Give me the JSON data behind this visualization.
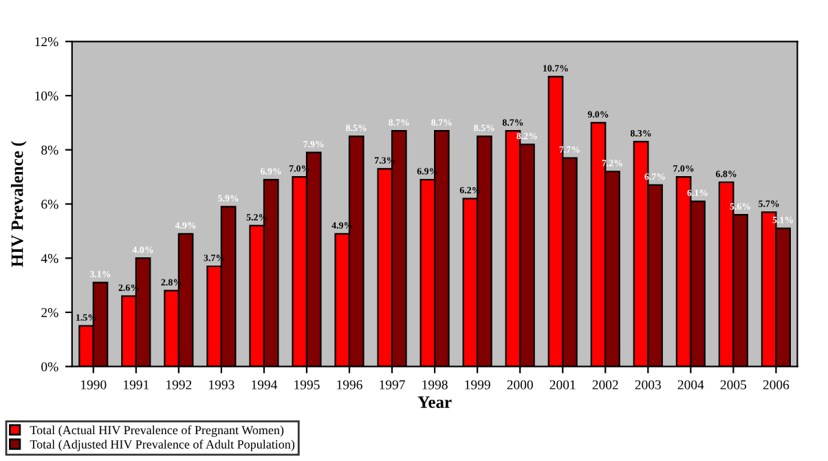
{
  "chart_data": {
    "type": "bar",
    "xlabel": "Year",
    "ylabel": "HIV Prevalence (",
    "categories": [
      "1990",
      "1991",
      "1992",
      "1993",
      "1994",
      "1995",
      "1996",
      "1997",
      "1998",
      "1999",
      "2000",
      "2001",
      "2002",
      "2003",
      "2004",
      "2005",
      "2006"
    ],
    "series": [
      {
        "name": "Total (Actual HIV Prevalence of Pregnant Women)",
        "color": "#ff0000",
        "values": [
          1.5,
          2.6,
          2.8,
          3.7,
          5.2,
          7.0,
          4.9,
          7.3,
          6.9,
          6.2,
          8.7,
          10.7,
          9.0,
          8.3,
          7.0,
          6.8,
          5.7
        ],
        "value_labels": [
          "1.5%",
          "2.6%",
          "2.8%",
          "3.7%",
          "5.2%",
          "7.0%",
          "4.9%",
          "7.3%",
          "6.9%",
          "6.2%",
          "8.7%",
          "10.7%",
          "9.0%",
          "8.3%",
          "7.0%",
          "6.8%",
          "5.7%"
        ]
      },
      {
        "name": "Total (Adjusted HIV Prevalence of Adult Population)",
        "color": "#800000",
        "values": [
          3.1,
          4.0,
          4.9,
          5.9,
          6.9,
          7.9,
          8.5,
          8.7,
          8.7,
          8.5,
          8.2,
          7.7,
          7.2,
          6.7,
          6.1,
          5.6,
          5.1
        ],
        "value_labels": [
          "3.1%",
          "4.0%",
          "4.9%",
          "5.9%",
          "6.9%",
          "7.9%",
          "8.5%",
          "8.7%",
          "8.7%",
          "8.5%",
          "8.2%",
          "7.7%",
          "7.2%",
          "6.7%",
          "6.1%",
          "5.6%",
          "5.1%"
        ]
      }
    ],
    "ylim": [
      0,
      12
    ],
    "yticks": [
      {
        "value": 0,
        "label": "0%"
      },
      {
        "value": 2,
        "label": "2%"
      },
      {
        "value": 4,
        "label": "4%"
      },
      {
        "value": 6,
        "label": "6%"
      },
      {
        "value": 8,
        "label": "8%"
      },
      {
        "value": 10,
        "label": "10%"
      },
      {
        "value": 12,
        "label": "12%"
      }
    ],
    "grid": false,
    "legend": "bottom left"
  }
}
